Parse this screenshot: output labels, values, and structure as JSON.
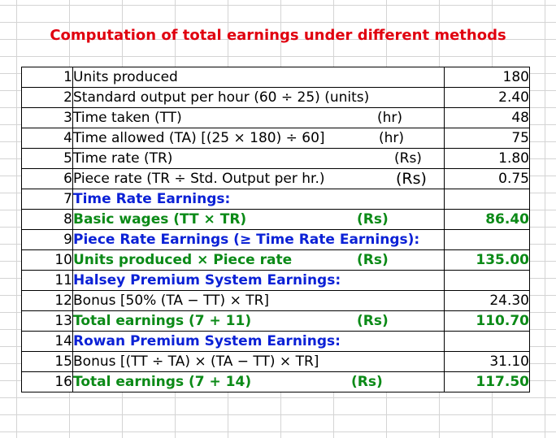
{
  "title": "Computation of total earnings under different methods",
  "rows": [
    {
      "n": "1",
      "desc": "Units produced",
      "unit": "",
      "value": "180"
    },
    {
      "n": "2",
      "desc": "Standard output per hour (60 ÷ 25) (units)",
      "unit": "",
      "value": "2.40"
    },
    {
      "n": "3",
      "desc": "Time taken (TT)",
      "unit": "(hr)",
      "value": "48"
    },
    {
      "n": "4",
      "desc": "Time allowed (TA) [(25 × 180) ÷ 60]",
      "unit": "(hr)",
      "value": "75"
    },
    {
      "n": "5",
      "desc": "Time rate (TR)",
      "unit": "(Rs)",
      "value": "1.80"
    },
    {
      "n": "6",
      "desc": "Piece rate (TR ÷ Std. Output per hr.)",
      "unit": "(Rs)",
      "value": "0.75"
    },
    {
      "n": "7",
      "desc": "Time Rate Earnings:",
      "unit": "",
      "value": ""
    },
    {
      "n": "8",
      "desc": "Basic wages (TT × TR)",
      "unit": "(Rs)",
      "value": "86.40"
    },
    {
      "n": "9",
      "desc": "Piece Rate Earnings (≥ Time Rate Earnings):",
      "unit": "",
      "value": ""
    },
    {
      "n": "10",
      "desc": "Units produced × Piece rate",
      "unit": "(Rs)",
      "value": "135.00"
    },
    {
      "n": "11",
      "desc": "Halsey Premium System Earnings:",
      "unit": "",
      "value": ""
    },
    {
      "n": "12",
      "desc": "Bonus [50% (TA − TT) × TR]",
      "unit": "",
      "value": "24.30"
    },
    {
      "n": "13",
      "desc": "Total earnings (7 + 11)",
      "unit": "(Rs)",
      "value": "110.70"
    },
    {
      "n": "14",
      "desc": "Rowan Premium System Earnings:",
      "unit": "",
      "value": ""
    },
    {
      "n": "15",
      "desc": "Bonus [(TT ÷ TA) × (TA − TT) × TR]",
      "unit": "",
      "value": "31.10"
    },
    {
      "n": "16",
      "desc": "Total earnings (7 + 14)",
      "unit": "(Rs)",
      "value": "117.50"
    }
  ],
  "colors": {
    "title": "#e0000f",
    "heading": "#0b21d6",
    "total": "#0b8a17",
    "grid": "#d4d4d4"
  }
}
